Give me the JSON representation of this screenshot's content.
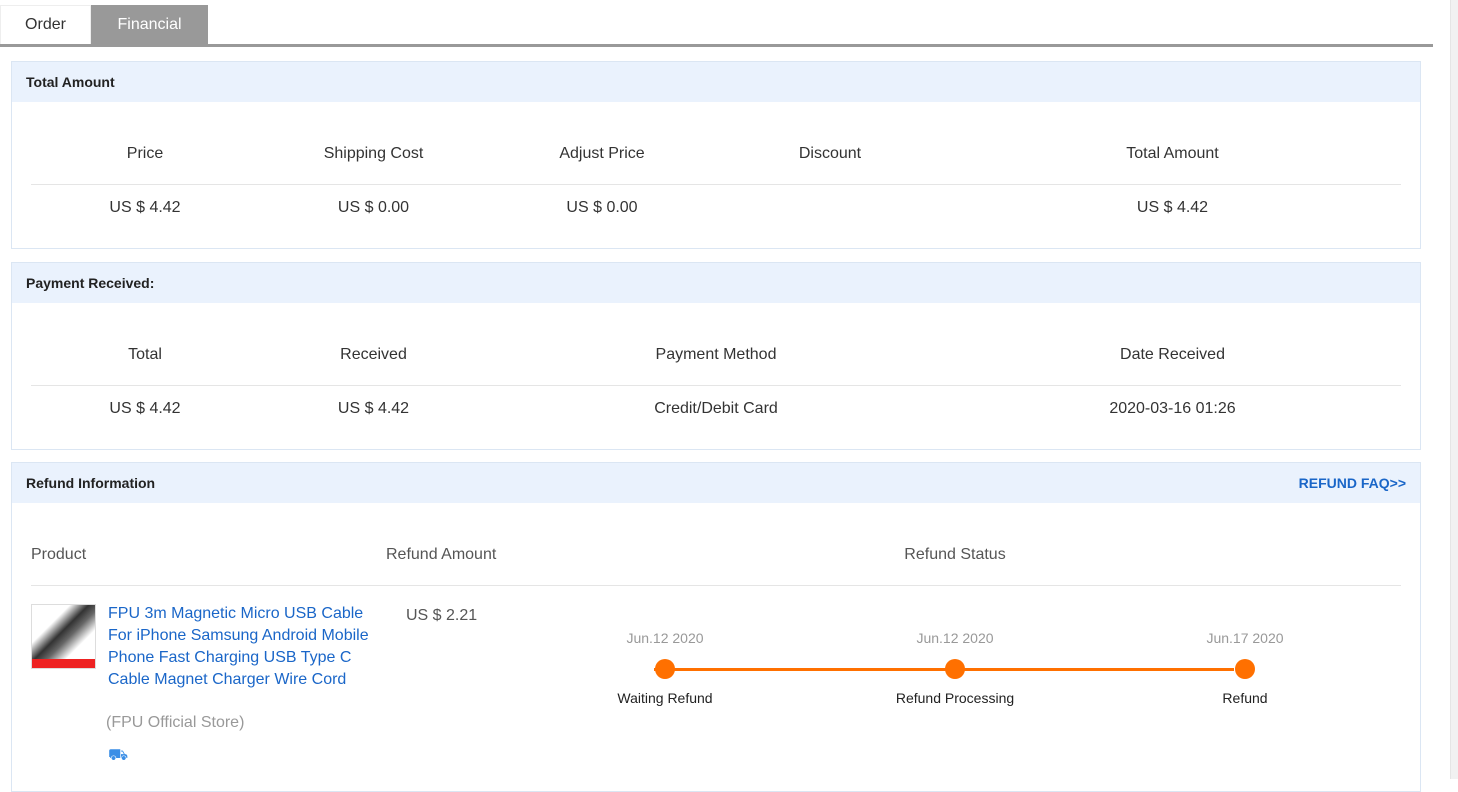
{
  "tabs": [
    {
      "label": "Order",
      "active": false
    },
    {
      "label": "Financial",
      "active": true
    }
  ],
  "total": {
    "title": "Total Amount",
    "headers": [
      "Price",
      "Shipping Cost",
      "Adjust Price",
      "Discount",
      "Total Amount"
    ],
    "values": [
      "US $ 4.42",
      "US $ 0.00",
      "US $ 0.00",
      "",
      "US $ 4.42"
    ]
  },
  "payment": {
    "title": "Payment Received:",
    "headers": [
      "Total",
      "Received",
      "Payment Method",
      "Date Received"
    ],
    "values": [
      "US $ 4.42",
      "US $ 4.42",
      "Credit/Debit Card",
      "2020-03-16 01:26"
    ]
  },
  "refund": {
    "title": "Refund Information",
    "faq": "REFUND FAQ>>",
    "headers": [
      "Product",
      "Refund Amount",
      "Refund Status"
    ],
    "product": {
      "name": "FPU 3m Magnetic Micro USB Cable For iPhone Samsung Android Mobile Phone Fast Charging USB Type C Cable Magnet Charger Wire Cord",
      "store": "(FPU Official Store)",
      "icon": "truck-icon"
    },
    "amount": "US $ 2.21",
    "steps": [
      {
        "date": "Jun.12 2020",
        "label": "Waiting Refund"
      },
      {
        "date": "Jun.12 2020",
        "label": "Refund Processing"
      },
      {
        "date": "Jun.17 2020",
        "label": "Refund"
      }
    ],
    "accent": "#ff7000"
  }
}
